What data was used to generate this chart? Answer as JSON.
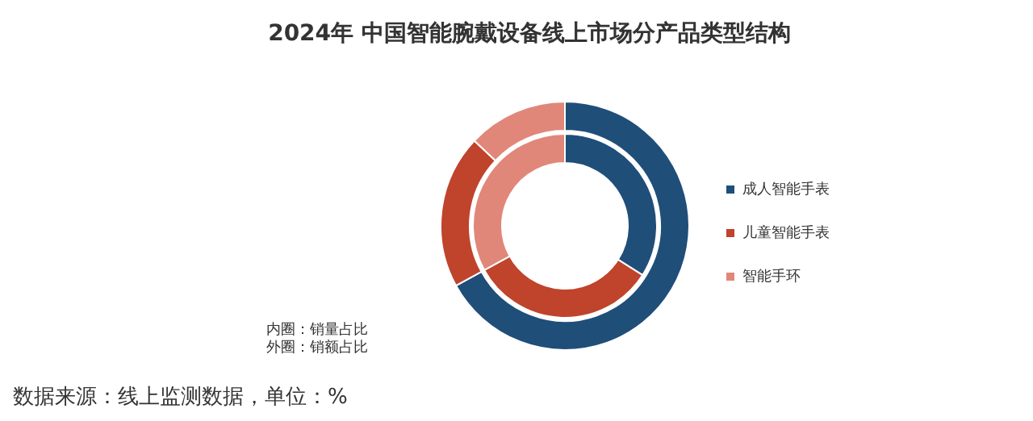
{
  "chart_data": {
    "type": "donut",
    "title": "2024年 中国智能腕戴设备线上市场分产品类型结构",
    "categories": [
      "成人智能手表",
      "儿童智能手表",
      "智能手环"
    ],
    "colors": [
      "#1f4e79",
      "#c0432c",
      "#e0877a"
    ],
    "series": [
      {
        "values": [
          34,
          33,
          33
        ]
      },
      {
        "values": [
          67,
          20,
          13
        ]
      }
    ],
    "legend": "right",
    "annotations": [
      "内圈：销量占比",
      "外圈：销额占比",
      "数据来源：线上监测数据，单位：%"
    ]
  }
}
